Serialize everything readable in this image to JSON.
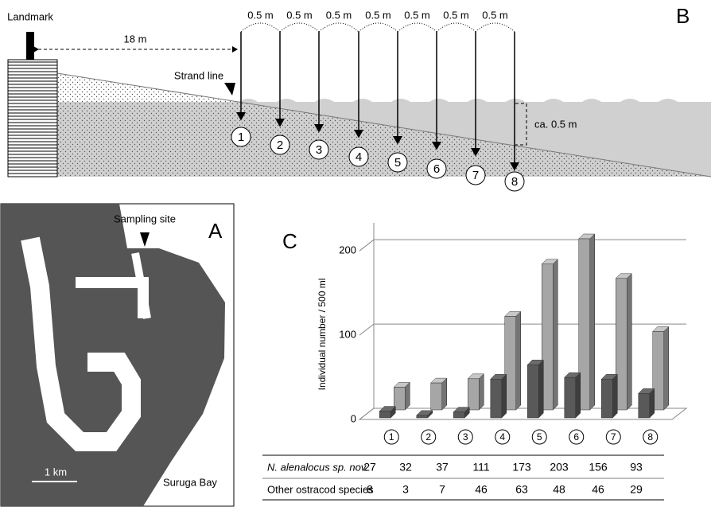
{
  "panel_b": {
    "label": "B",
    "landmark": "Landmark",
    "distance": "18 m",
    "strand_line": "Strand line",
    "spacing_labels": [
      "0.5 m",
      "0.5 m",
      "0.5 m",
      "0.5 m",
      "0.5 m",
      "0.5 m",
      "0.5 m"
    ],
    "depth": "ca. 0.5 m",
    "stations": [
      "1",
      "2",
      "3",
      "4",
      "5",
      "6",
      "7",
      "8"
    ]
  },
  "panel_a": {
    "label": "A",
    "sampling_site": "Sampling site",
    "scale": "1 km",
    "bay": "Suruga Bay"
  },
  "chart_data": {
    "type": "bar",
    "panel_label": "C",
    "y_label": "Individual number / 500 ml",
    "categories": [
      "1",
      "2",
      "3",
      "4",
      "5",
      "6",
      "7",
      "8"
    ],
    "series": [
      {
        "name": "N. alenalocus sp. nov.",
        "color": "#a6a6a6",
        "values": [
          27,
          32,
          37,
          111,
          173,
          203,
          156,
          93
        ]
      },
      {
        "name": "Other ostracod species",
        "color": "#595959",
        "values": [
          8,
          3,
          7,
          46,
          63,
          48,
          46,
          29
        ]
      }
    ],
    "ylim": [
      0,
      220
    ],
    "yticks": [
      0,
      100,
      200
    ],
    "grid": true
  }
}
